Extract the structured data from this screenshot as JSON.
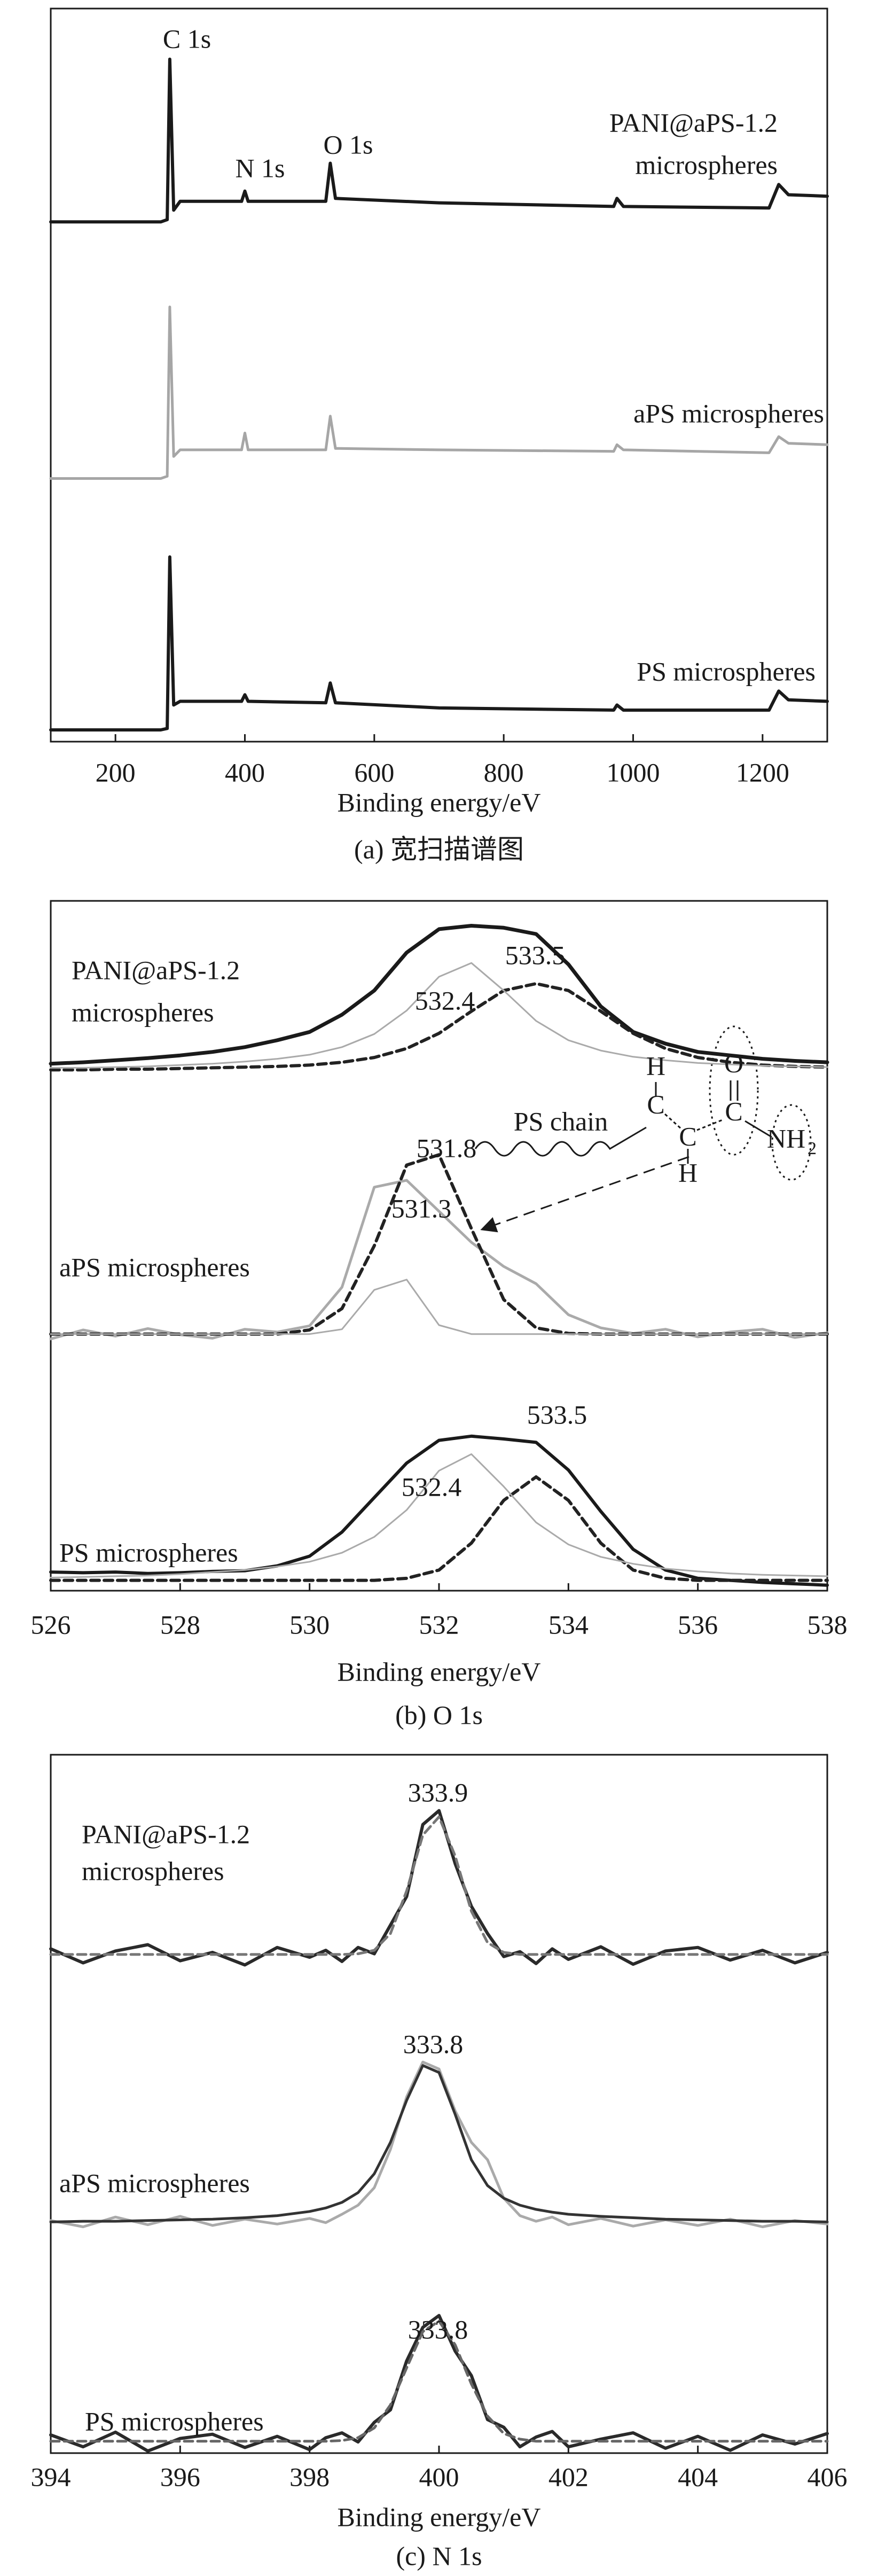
{
  "chart_data": [
    {
      "type": "line",
      "x_label": "Binding energy/eV",
      "caption": "(a) 宽扫描谱图",
      "xlim": [
        100,
        1300
      ],
      "xticks": [
        200,
        400,
        600,
        800,
        1000,
        1200
      ],
      "ylim": [
        0,
        100
      ],
      "x": [
        100,
        270,
        280,
        284,
        290,
        300,
        395,
        400,
        405,
        525,
        532,
        540,
        700,
        970,
        975,
        985,
        1210,
        1225,
        1240,
        1300
      ],
      "annotations": [
        "C 1s",
        "N 1s",
        "O 1s",
        "PANI@aPS-1.2",
        "microspheres",
        "aPS microspheres",
        "PS microspheres"
      ],
      "series": [
        {
          "color": "#1a1a1a",
          "width": 6,
          "dash": false,
          "values": [
            70.9,
            70.9,
            71.2,
            93.1,
            72.5,
            73.7,
            73.7,
            75.1,
            73.7,
            73.7,
            78.9,
            74.1,
            73.5,
            73.0,
            74.1,
            73.0,
            72.8,
            76.0,
            74.6,
            74.4
          ]
        },
        {
          "color": "#a6a6a6",
          "width": 5,
          "dash": false,
          "values": [
            35.9,
            35.9,
            36.2,
            59.3,
            38.9,
            39.8,
            39.8,
            42.1,
            39.8,
            39.8,
            44.4,
            40.0,
            39.8,
            39.6,
            40.5,
            39.8,
            39.4,
            41.6,
            40.7,
            40.5
          ]
        },
        {
          "color": "#1a1a1a",
          "width": 6,
          "dash": false,
          "values": [
            1.6,
            1.6,
            1.8,
            25.2,
            5.0,
            5.5,
            5.5,
            6.4,
            5.5,
            5.3,
            8.0,
            5.3,
            4.6,
            4.3,
            5.0,
            4.3,
            4.3,
            6.9,
            5.7,
            5.5
          ]
        }
      ]
    },
    {
      "type": "line",
      "x_label": "Binding energy/eV",
      "caption": "(b) O 1s",
      "xlim": [
        526,
        538
      ],
      "xticks": [
        526,
        528,
        530,
        532,
        534,
        536,
        538
      ],
      "ylim": [
        0,
        100
      ],
      "x": [
        526,
        526.5,
        527,
        527.5,
        528,
        528.5,
        529,
        529.5,
        530,
        530.5,
        531,
        531.5,
        532,
        532.5,
        533,
        533.5,
        534,
        534.5,
        535,
        535.5,
        536,
        536.5,
        537,
        537.5,
        538
      ],
      "annotations": [
        "PANI@aPS-1.2",
        "microspheres",
        "533.5",
        "532.4",
        "PS chain",
        "H",
        "C",
        "C",
        "H",
        "O",
        "C",
        "NH",
        "2",
        "531.8",
        "531.3",
        "aPS microspheres",
        "533.5",
        "532.4",
        "PS microspheres"
      ],
      "series": [
        {
          "color": "#1a1a1a",
          "width": 7,
          "dash": false,
          "values": [
            76.4,
            76.6,
            76.9,
            77.2,
            77.6,
            78.1,
            78.8,
            79.8,
            81.0,
            83.5,
            87.0,
            92.5,
            95.9,
            96.4,
            96.1,
            95.2,
            90.8,
            84.7,
            81.0,
            79.3,
            78.1,
            77.6,
            77.1,
            76.8,
            76.6
          ]
        },
        {
          "color": "#222222",
          "width": 6,
          "dash": true,
          "values": [
            75.5,
            75.5,
            75.6,
            75.6,
            75.7,
            75.8,
            75.9,
            76.0,
            76.2,
            76.6,
            77.3,
            78.6,
            80.8,
            84.0,
            87.0,
            88.0,
            87.0,
            84.0,
            80.8,
            78.6,
            77.3,
            76.6,
            76.2,
            76.0,
            75.9
          ]
        },
        {
          "color": "#aaaaaa",
          "width": 3,
          "dash": false,
          "values": [
            75.8,
            75.8,
            75.9,
            76.0,
            76.2,
            76.4,
            76.7,
            77.1,
            77.7,
            78.8,
            80.7,
            84.1,
            89.0,
            91.0,
            87.0,
            82.6,
            79.8,
            78.3,
            77.4,
            76.9,
            76.5,
            76.3,
            76.1,
            76.0,
            75.9
          ]
        },
        {
          "color": "#aaaaaa",
          "width": 5,
          "dash": false,
          "values": [
            36.5,
            37.8,
            36.9,
            38.0,
            37.1,
            36.6,
            37.9,
            37.5,
            38.4,
            44.0,
            58.5,
            59.5,
            55.0,
            50.5,
            47.0,
            44.5,
            40.0,
            38.1,
            37.3,
            37.9,
            36.8,
            37.5,
            37.9,
            36.7,
            37.4
          ]
        },
        {
          "color": "#222222",
          "width": 6,
          "dash": true,
          "values": [
            37.2,
            37.2,
            37.2,
            37.2,
            37.2,
            37.2,
            37.2,
            37.2,
            37.8,
            40.9,
            50.0,
            61.7,
            63.2,
            52.5,
            42.2,
            38.1,
            37.3,
            37.2,
            37.2,
            37.2,
            37.2,
            37.2,
            37.2,
            37.2,
            37.2
          ]
        },
        {
          "color": "#aaaaaa",
          "width": 3,
          "dash": false,
          "values": [
            37.2,
            37.2,
            37.2,
            37.2,
            37.2,
            37.2,
            37.2,
            37.2,
            37.2,
            37.9,
            43.6,
            45.1,
            38.5,
            37.2,
            37.2,
            37.2,
            37.2,
            37.2,
            37.2,
            37.2,
            37.2,
            37.2,
            37.2,
            37.2,
            37.2
          ]
        },
        {
          "color": "#1a1a1a",
          "width": 6,
          "dash": false,
          "values": [
            2.7,
            2.6,
            2.7,
            2.5,
            2.6,
            2.8,
            2.9,
            3.6,
            5.0,
            8.5,
            13.5,
            18.5,
            21.8,
            22.4,
            22.0,
            21.5,
            17.5,
            11.5,
            6.0,
            3.0,
            1.8,
            1.5,
            1.2,
            1.0,
            0.8
          ]
        },
        {
          "color": "#222222",
          "width": 6,
          "dash": true,
          "values": [
            1.5,
            1.5,
            1.5,
            1.5,
            1.5,
            1.5,
            1.5,
            1.5,
            1.5,
            1.5,
            1.5,
            1.8,
            3.0,
            6.9,
            13.1,
            16.5,
            13.1,
            6.9,
            3.0,
            1.8,
            1.5,
            1.5,
            1.5,
            1.5,
            1.5
          ]
        },
        {
          "color": "#aaaaaa",
          "width": 3,
          "dash": false,
          "values": [
            1.9,
            2.0,
            2.1,
            2.2,
            2.4,
            2.7,
            3.0,
            3.5,
            4.2,
            5.5,
            7.8,
            11.7,
            17.4,
            19.8,
            15.1,
            9.9,
            6.7,
            4.9,
            3.9,
            3.2,
            2.8,
            2.5,
            2.3,
            2.2,
            2.1
          ]
        }
      ]
    },
    {
      "type": "line",
      "x_label": "Binding energy/eV",
      "caption": "(c) N 1s",
      "xlim": [
        394,
        406
      ],
      "xticks": [
        394,
        396,
        398,
        400,
        402,
        404,
        406
      ],
      "ylim": [
        0,
        100
      ],
      "x": [
        394,
        394.5,
        395,
        395.5,
        396,
        396.5,
        397,
        397.5,
        398,
        398.25,
        398.5,
        398.75,
        399,
        399.25,
        399.5,
        399.75,
        400,
        400.25,
        400.5,
        400.75,
        401,
        401.25,
        401.5,
        401.75,
        402,
        402.5,
        403,
        403.5,
        404,
        404.5,
        405,
        405.5,
        406
      ],
      "annotations": [
        "333.9",
        "PANI@aPS-1.2",
        "microspheres",
        "333.8",
        "aPS microspheres",
        "333.8",
        "PS microspheres"
      ],
      "series": [
        {
          "color": "#2a2a2a",
          "width": 6,
          "dash": false,
          "values": [
            72.2,
            70.2,
            71.9,
            72.8,
            70.5,
            71.7,
            69.9,
            72.4,
            71.0,
            72.0,
            70.4,
            72.4,
            71.5,
            75.6,
            79.7,
            90.0,
            92.0,
            84.4,
            78.3,
            74.4,
            71.1,
            71.8,
            70.1,
            72.2,
            70.7,
            72.5,
            70.0,
            71.9,
            72.4,
            70.6,
            72.0,
            70.2,
            71.7
          ]
        },
        {
          "color": "#777777",
          "width": 5,
          "dash": true,
          "values": [
            71.4,
            71.4,
            71.4,
            71.4,
            71.4,
            71.4,
            71.4,
            71.4,
            71.4,
            71.4,
            71.4,
            71.5,
            72.0,
            74.4,
            80.5,
            88.5,
            91.1,
            85.5,
            77.6,
            73.1,
            71.7,
            71.4,
            71.4,
            71.4,
            71.4,
            71.4,
            71.4,
            71.4,
            71.4,
            71.4,
            71.4,
            71.4,
            71.4
          ]
        },
        {
          "color": "#aaaaaa",
          "width": 5,
          "dash": false,
          "values": [
            33.3,
            32.4,
            33.8,
            32.7,
            33.9,
            32.6,
            33.5,
            32.8,
            33.6,
            33.0,
            34.2,
            35.5,
            38.0,
            43.5,
            51.0,
            56.0,
            55.0,
            49.0,
            44.5,
            42.0,
            36.5,
            34.0,
            33.2,
            33.8,
            32.7,
            33.6,
            32.5,
            33.4,
            32.6,
            33.5,
            32.4,
            33.3,
            32.8
          ]
        },
        {
          "color": "#333333",
          "width": 5,
          "dash": false,
          "values": [
            33.1,
            33.2,
            33.2,
            33.3,
            33.4,
            33.5,
            33.7,
            34.0,
            34.6,
            35.1,
            35.9,
            37.3,
            40.0,
            44.5,
            50.5,
            55.5,
            54.5,
            48.5,
            42.0,
            38.3,
            36.5,
            35.5,
            34.9,
            34.5,
            34.2,
            33.9,
            33.7,
            33.5,
            33.4,
            33.3,
            33.2,
            33.2,
            33.1
          ]
        },
        {
          "color": "#2a2a2a",
          "width": 6,
          "dash": false,
          "values": [
            2.6,
            0.9,
            3.0,
            0.3,
            2.1,
            2.7,
            0.8,
            2.4,
            0.5,
            2.2,
            2.9,
            1.6,
            4.4,
            6.2,
            13.2,
            18.0,
            19.7,
            14.6,
            11.1,
            4.8,
            3.7,
            0.9,
            2.3,
            3.1,
            0.9,
            2.0,
            2.9,
            0.7,
            2.4,
            0.4,
            2.6,
            1.3,
            2.8
          ]
        },
        {
          "color": "#666666",
          "width": 5,
          "dash": true,
          "values": [
            1.7,
            1.7,
            1.7,
            1.7,
            1.7,
            1.7,
            1.7,
            1.7,
            1.7,
            1.7,
            1.8,
            2.2,
            3.6,
            6.9,
            12.2,
            17.4,
            18.9,
            15.5,
            9.9,
            5.3,
            2.8,
            2.0,
            1.7,
            1.7,
            1.7,
            1.7,
            1.7,
            1.7,
            1.7,
            1.7,
            1.7,
            1.7,
            1.7
          ]
        }
      ]
    }
  ]
}
